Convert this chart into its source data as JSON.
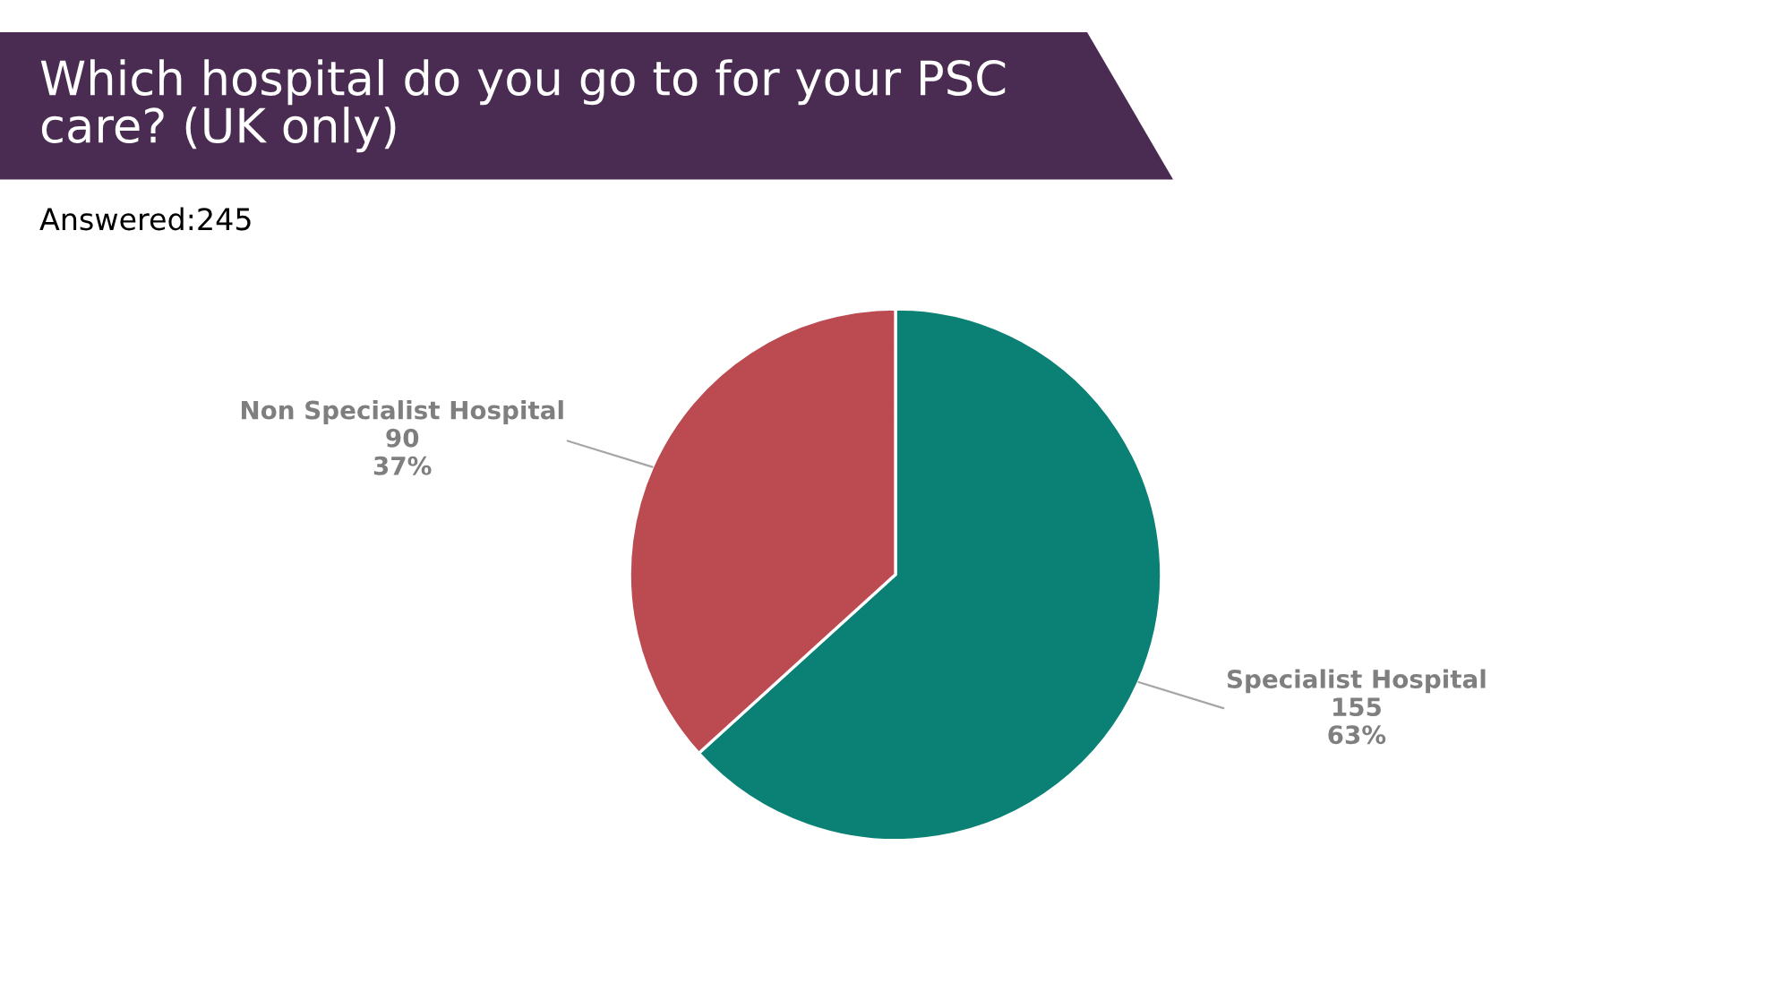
{
  "chart_data": {
    "type": "pie",
    "title": "Which hospital do you go to for your PSC care? (UK only)",
    "subtitle": "Answered:245",
    "categories": [
      "Specialist Hospital",
      "Non Specialist Hospital"
    ],
    "values": [
      155,
      90
    ],
    "colors": [
      "#0a8174",
      "#bc4b51"
    ],
    "value_labels": [
      "155\n63%",
      "90\n37%"
    ],
    "legend": false
  }
}
